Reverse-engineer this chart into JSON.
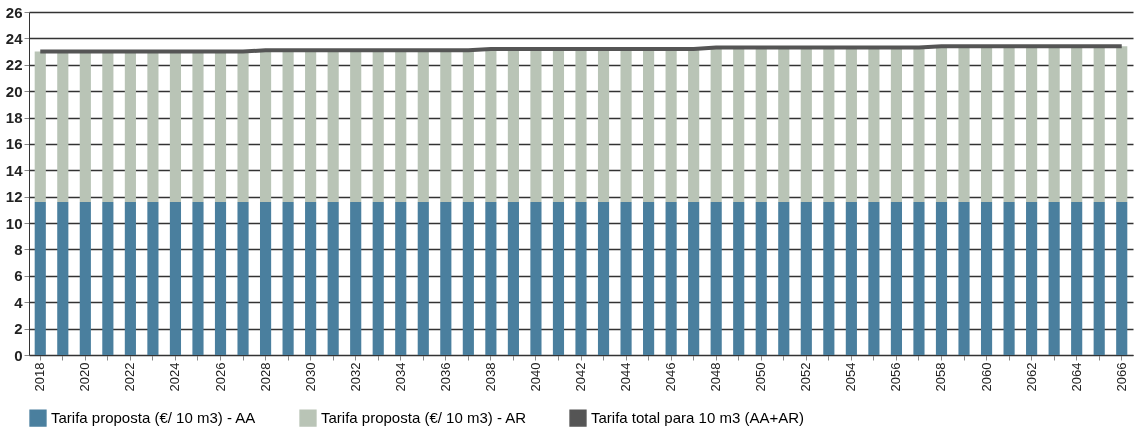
{
  "chart_data": {
    "type": "bar",
    "stacked": true,
    "categories": [
      "2018",
      null,
      "2020",
      null,
      "2022",
      null,
      "2024",
      null,
      "2026",
      null,
      "2028",
      null,
      "2030",
      null,
      "2032",
      null,
      "2034",
      null,
      "2036",
      null,
      "2038",
      null,
      "2040",
      null,
      "2042",
      null,
      "2044",
      null,
      "2046",
      null,
      "2048",
      null,
      "2050",
      null,
      "2052",
      null,
      "2054",
      null,
      "2056",
      null,
      "2058",
      null,
      "2060",
      null,
      "2062",
      null,
      "2064",
      null,
      "2066"
    ],
    "series": [
      {
        "name": "Tarifa proposta (€/ 10 m3) - AA",
        "color": "#4a7f9e",
        "values": [
          11.6,
          11.6,
          11.6,
          11.6,
          11.6,
          11.6,
          11.6,
          11.6,
          11.6,
          11.6,
          11.6,
          11.6,
          11.6,
          11.6,
          11.6,
          11.6,
          11.6,
          11.6,
          11.6,
          11.6,
          11.6,
          11.6,
          11.6,
          11.6,
          11.6,
          11.6,
          11.6,
          11.6,
          11.6,
          11.6,
          11.6,
          11.6,
          11.6,
          11.6,
          11.6,
          11.6,
          11.6,
          11.6,
          11.6,
          11.6,
          11.6,
          11.6,
          11.6,
          11.6,
          11.6,
          11.6,
          11.6,
          11.6,
          11.6
        ]
      },
      {
        "name": "Tarifa proposta (€/ 10 m3) - AR",
        "color": "#b9c4b6",
        "values": [
          11.4,
          11.4,
          11.4,
          11.4,
          11.4,
          11.4,
          11.4,
          11.4,
          11.4,
          11.4,
          11.5,
          11.5,
          11.5,
          11.5,
          11.5,
          11.5,
          11.5,
          11.5,
          11.5,
          11.5,
          11.6,
          11.6,
          11.6,
          11.6,
          11.6,
          11.6,
          11.6,
          11.6,
          11.6,
          11.6,
          11.7,
          11.7,
          11.7,
          11.7,
          11.7,
          11.7,
          11.7,
          11.7,
          11.7,
          11.7,
          11.8,
          11.8,
          11.8,
          11.8,
          11.8,
          11.8,
          11.8,
          11.8,
          11.8
        ]
      },
      {
        "name": "Tarifa total para 10 m3 (AA+AR)",
        "color": "#555555",
        "type": "line",
        "values": [
          23.0,
          23.0,
          23.0,
          23.0,
          23.0,
          23.0,
          23.0,
          23.0,
          23.0,
          23.0,
          23.1,
          23.1,
          23.1,
          23.1,
          23.1,
          23.1,
          23.1,
          23.1,
          23.1,
          23.1,
          23.2,
          23.2,
          23.2,
          23.2,
          23.2,
          23.2,
          23.2,
          23.2,
          23.2,
          23.2,
          23.3,
          23.3,
          23.3,
          23.3,
          23.3,
          23.3,
          23.3,
          23.3,
          23.3,
          23.3,
          23.4,
          23.4,
          23.4,
          23.4,
          23.4,
          23.4,
          23.4,
          23.4,
          23.4
        ]
      }
    ],
    "ylim": [
      0,
      26
    ],
    "yticks": [
      0,
      2,
      4,
      6,
      8,
      10,
      12,
      14,
      16,
      18,
      20,
      22,
      24,
      26
    ],
    "grid": "y",
    "legend": "bottom"
  }
}
